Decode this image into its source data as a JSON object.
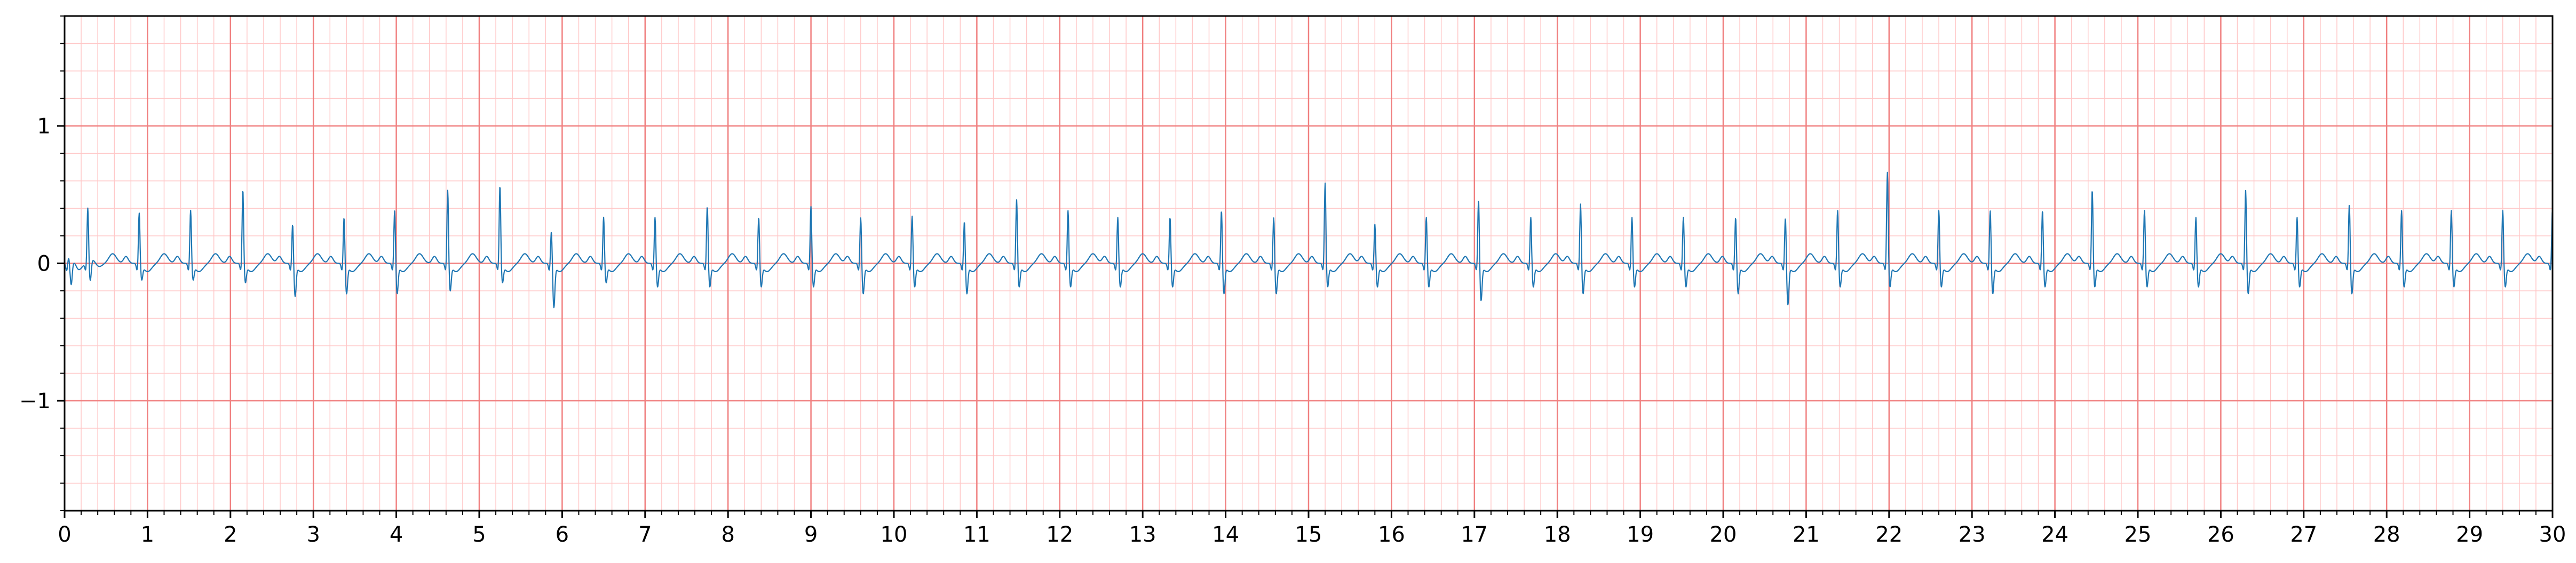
{
  "chart_data": {
    "type": "line",
    "title": "",
    "xlabel": "",
    "ylabel": "",
    "xlim": [
      0,
      30
    ],
    "ylim": [
      -1.8,
      1.8
    ],
    "x_ticks": [
      "0",
      "1",
      "2",
      "3",
      "4",
      "5",
      "6",
      "7",
      "8",
      "9",
      "10",
      "11",
      "12",
      "13",
      "14",
      "15",
      "16",
      "17",
      "18",
      "19",
      "20",
      "21",
      "22",
      "23",
      "24",
      "25",
      "26",
      "27",
      "28",
      "29",
      "30"
    ],
    "y_ticks": [
      {
        "value": 1,
        "label": "1"
      },
      {
        "value": 0,
        "label": "0"
      },
      {
        "value": -1,
        "label": "−1"
      }
    ],
    "grid": true,
    "grid_major_x": 1,
    "grid_major_y": 1,
    "grid_minor_x": 0.2,
    "grid_minor_y": 0.2,
    "colors": {
      "line": "#1f77b4",
      "major_grid": "#f08080",
      "minor_grid": "#ffc8c8",
      "axis": "#000000"
    },
    "series": [
      {
        "beat_times": [
          0.05,
          0.28,
          0.9,
          1.52,
          2.15,
          2.75,
          3.37,
          3.98,
          4.62,
          5.25,
          5.87,
          6.5,
          7.12,
          7.75,
          8.37,
          9.0,
          9.6,
          10.22,
          10.85,
          11.48,
          12.1,
          12.7,
          13.33,
          13.95,
          14.58,
          15.2,
          15.8,
          16.42,
          17.05,
          17.68,
          18.28,
          18.9,
          19.52,
          20.15,
          20.75,
          21.38,
          21.98,
          22.6,
          23.22,
          23.85,
          24.45,
          25.08,
          25.7,
          26.3,
          26.92,
          27.55,
          28.18,
          28.78,
          29.4,
          30.0
        ],
        "r_amplitudes": [
          0.05,
          0.4,
          0.38,
          0.4,
          0.55,
          0.3,
          0.35,
          0.4,
          0.55,
          0.58,
          0.25,
          0.35,
          0.35,
          0.43,
          0.35,
          0.43,
          0.35,
          0.36,
          0.32,
          0.48,
          0.4,
          0.35,
          0.35,
          0.4,
          0.35,
          0.6,
          0.3,
          0.35,
          0.48,
          0.35,
          0.45,
          0.35,
          0.35,
          0.35,
          0.35,
          0.4,
          0.68,
          0.4,
          0.4,
          0.4,
          0.55,
          0.4,
          0.35,
          0.55,
          0.35,
          0.45,
          0.4,
          0.4,
          0.4,
          0.42
        ],
        "s_depths": [
          -0.15,
          -0.15,
          -0.1,
          -0.1,
          -0.12,
          -0.22,
          -0.2,
          -0.2,
          -0.18,
          -0.12,
          -0.3,
          -0.12,
          -0.15,
          -0.15,
          -0.15,
          -0.15,
          -0.2,
          -0.15,
          -0.2,
          -0.15,
          -0.15,
          -0.15,
          -0.15,
          -0.2,
          -0.2,
          -0.15,
          -0.15,
          -0.15,
          -0.25,
          -0.15,
          -0.2,
          -0.15,
          -0.15,
          -0.2,
          -0.28,
          -0.15,
          -0.15,
          -0.15,
          -0.2,
          -0.15,
          -0.15,
          -0.15,
          -0.15,
          -0.2,
          -0.15,
          -0.2,
          -0.15,
          -0.15,
          -0.15,
          -0.15
        ]
      }
    ]
  }
}
